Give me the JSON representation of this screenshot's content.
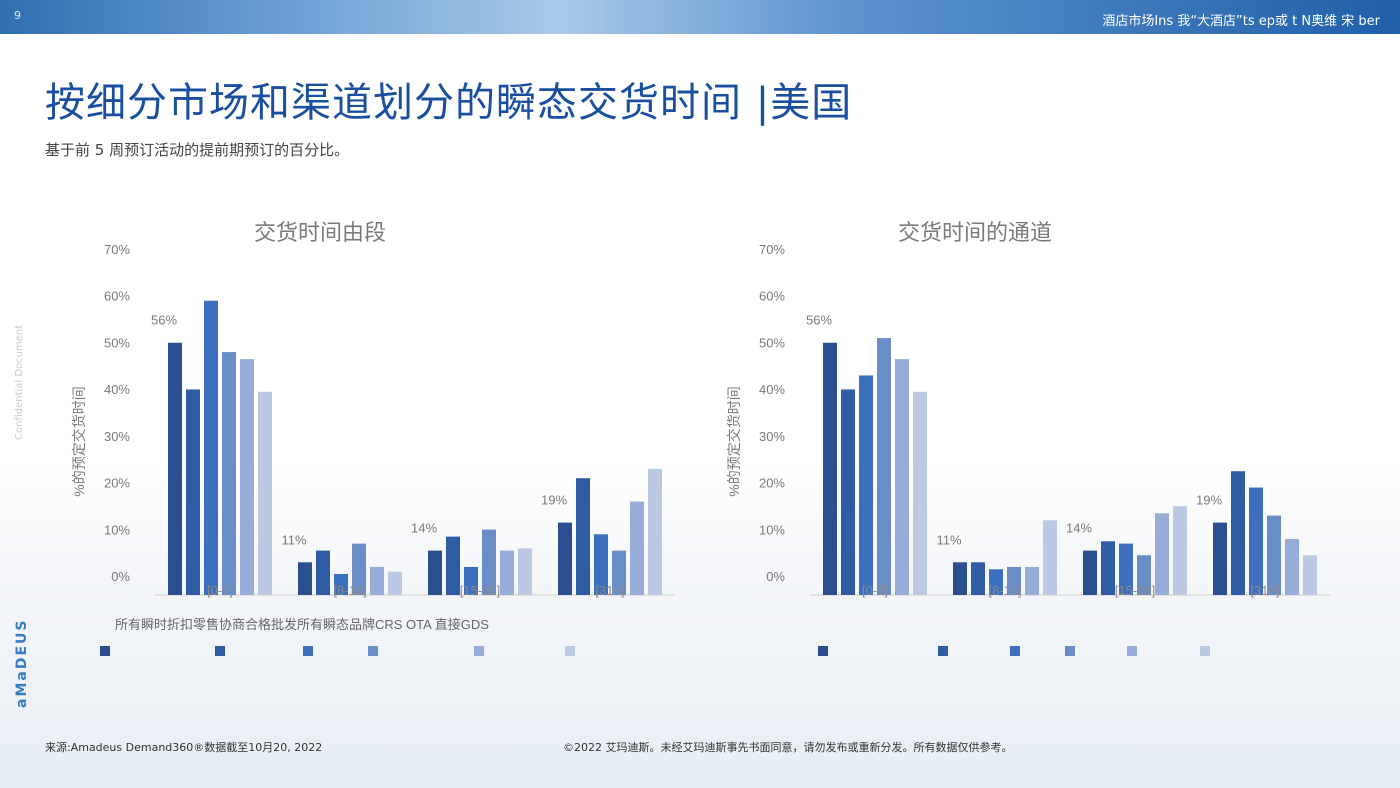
{
  "page": {
    "number": "9"
  },
  "header": {
    "top_right_text": "酒店市场Ins 我“大酒店”ts ep或 t N奥维 宋 ber"
  },
  "title": "按细分市场和渠道划分的瞬态交货时间 |美国",
  "subtitle": "基于前 5 周预订活动的提前期预订的百分比。",
  "side_text": "Confidential Document",
  "brand": "aMaDEUS",
  "legend_text": "所有瞬时折扣零售协商合格批发所有瞬态品牌CRS OTA 直接GDS",
  "footer": {
    "source": "来源:Amadeus Demand360®数据截至10月20, 2022",
    "copyright": "©2022 艾玛迪斯。未经艾玛迪斯事先书面同意，请勿发布或重新分发。所有数据仅供参考。"
  },
  "colors": [
    "#2b4f8e",
    "#2f5ca3",
    "#3c6fbd",
    "#6a8dc8",
    "#97acd6",
    "#bcc9e3"
  ],
  "chart_data": [
    {
      "type": "bar",
      "title": "交货时间由段",
      "ylabel": "%的预定交货时间",
      "ylim": [
        0,
        70
      ],
      "yticks": [
        "0%",
        "10%",
        "20%",
        "30%",
        "40%",
        "50%",
        "60%",
        "70%"
      ],
      "categories": [
        "[0-7]",
        "[8-14]",
        "[15-30]",
        "[31+]"
      ],
      "group_labels": [
        "56%",
        "11%",
        "14%",
        "19%"
      ],
      "series": [
        {
          "values": [
            54,
            7,
            9.5,
            15.5
          ]
        },
        {
          "values": [
            44,
            9.5,
            12.5,
            25
          ]
        },
        {
          "values": [
            63,
            4.5,
            6,
            13
          ]
        },
        {
          "values": [
            52,
            11,
            14,
            9.5
          ]
        },
        {
          "values": [
            50.5,
            6,
            9.5,
            20
          ]
        },
        {
          "values": [
            43.5,
            5,
            10,
            27
          ]
        }
      ]
    },
    {
      "type": "bar",
      "title": "交货时间的通道",
      "ylabel": "%的预定交货时间",
      "ylim": [
        0,
        70
      ],
      "yticks": [
        "0%",
        "10%",
        "20%",
        "30%",
        "40%",
        "50%",
        "60%",
        "70%"
      ],
      "categories": [
        "[0-7]",
        "[8-14]",
        "[15-30]",
        "[31+]"
      ],
      "group_labels": [
        "56%",
        "11%",
        "14%",
        "19%"
      ],
      "series": [
        {
          "values": [
            54,
            7,
            9.5,
            15.5
          ]
        },
        {
          "values": [
            44,
            7,
            11.5,
            26.5
          ]
        },
        {
          "values": [
            47,
            5.5,
            11,
            23
          ]
        },
        {
          "values": [
            55,
            6,
            8.5,
            17
          ]
        },
        {
          "values": [
            50.5,
            6,
            17.5,
            12
          ]
        },
        {
          "values": [
            43.5,
            16,
            19,
            8.5
          ]
        }
      ]
    }
  ]
}
